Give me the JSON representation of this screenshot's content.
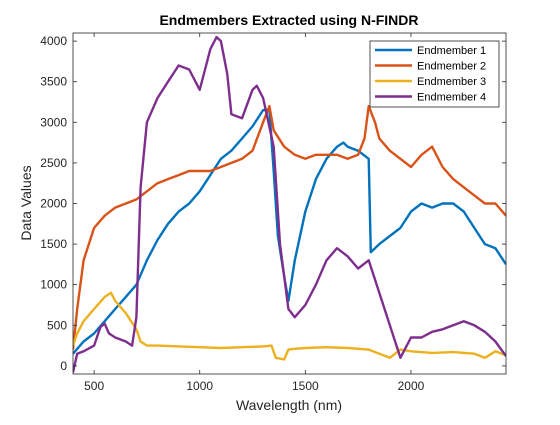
{
  "chart_data": {
    "type": "line",
    "title": "Endmembers Extracted using N-FINDR",
    "xlabel": "Wavelength (nm)",
    "ylabel": "Data Values",
    "xlim": [
      400,
      2450
    ],
    "ylim": [
      -100,
      4100
    ],
    "xticks": [
      500,
      1000,
      1500,
      2000
    ],
    "yticks": [
      0,
      500,
      1000,
      1500,
      2000,
      2500,
      3000,
      3500,
      4000
    ],
    "grid": false,
    "legend_position": "top-right",
    "series": [
      {
        "name": "Endmember 1",
        "color": "#0072BD",
        "x": [
          400,
          450,
          500,
          550,
          600,
          650,
          700,
          750,
          800,
          850,
          900,
          950,
          1000,
          1050,
          1100,
          1150,
          1200,
          1250,
          1300,
          1330,
          1350,
          1370,
          1400,
          1420,
          1450,
          1500,
          1550,
          1600,
          1650,
          1680,
          1700,
          1750,
          1800,
          1810,
          1850,
          1900,
          1950,
          2000,
          2050,
          2100,
          2150,
          2200,
          2250,
          2300,
          2350,
          2400,
          2450
        ],
        "y": [
          150,
          300,
          400,
          550,
          700,
          850,
          1000,
          1300,
          1550,
          1750,
          1900,
          2000,
          2150,
          2350,
          2550,
          2650,
          2800,
          2950,
          3150,
          3150,
          2400,
          1600,
          1100,
          800,
          1300,
          1900,
          2300,
          2550,
          2700,
          2750,
          2700,
          2650,
          2550,
          1400,
          1500,
          1600,
          1700,
          1900,
          2000,
          1950,
          2000,
          2000,
          1900,
          1700,
          1500,
          1450,
          1250
        ]
      },
      {
        "name": "Endmember 2",
        "color": "#D95319",
        "x": [
          400,
          420,
          450,
          500,
          550,
          600,
          650,
          700,
          750,
          800,
          850,
          900,
          950,
          1000,
          1050,
          1100,
          1150,
          1200,
          1250,
          1300,
          1330,
          1350,
          1400,
          1450,
          1500,
          1550,
          1600,
          1650,
          1700,
          1750,
          1780,
          1800,
          1830,
          1850,
          1900,
          1950,
          2000,
          2050,
          2100,
          2150,
          2200,
          2250,
          2300,
          2350,
          2400,
          2450
        ],
        "y": [
          200,
          700,
          1300,
          1700,
          1850,
          1950,
          2000,
          2050,
          2150,
          2250,
          2300,
          2350,
          2400,
          2400,
          2400,
          2450,
          2500,
          2550,
          2650,
          3000,
          3200,
          2900,
          2700,
          2600,
          2550,
          2600,
          2600,
          2600,
          2550,
          2600,
          2800,
          3200,
          3000,
          2800,
          2650,
          2550,
          2450,
          2600,
          2700,
          2450,
          2300,
          2200,
          2100,
          2000,
          2000,
          1850
        ]
      },
      {
        "name": "Endmember 3",
        "color": "#EDB120",
        "x": [
          400,
          420,
          450,
          500,
          550,
          580,
          600,
          650,
          700,
          720,
          750,
          800,
          900,
          1000,
          1100,
          1200,
          1300,
          1340,
          1360,
          1400,
          1420,
          1450,
          1500,
          1600,
          1700,
          1800,
          1900,
          1950,
          2000,
          2100,
          2200,
          2300,
          2350,
          2400,
          2450
        ],
        "y": [
          250,
          400,
          550,
          700,
          850,
          900,
          800,
          650,
          450,
          300,
          250,
          250,
          240,
          230,
          220,
          230,
          240,
          250,
          100,
          80,
          200,
          210,
          220,
          230,
          220,
          200,
          100,
          200,
          180,
          160,
          170,
          150,
          100,
          180,
          130
        ]
      },
      {
        "name": "Endmember 4",
        "color": "#7E2F8E",
        "x": [
          400,
          420,
          450,
          500,
          530,
          550,
          570,
          600,
          650,
          680,
          700,
          720,
          750,
          800,
          850,
          900,
          950,
          1000,
          1030,
          1050,
          1080,
          1100,
          1130,
          1150,
          1200,
          1250,
          1270,
          1300,
          1350,
          1380,
          1420,
          1450,
          1500,
          1550,
          1600,
          1650,
          1700,
          1750,
          1800,
          1850,
          1950,
          2000,
          2050,
          2100,
          2150,
          2200,
          2250,
          2300,
          2350,
          2400,
          2450
        ],
        "y": [
          -80,
          150,
          180,
          250,
          480,
          520,
          400,
          350,
          300,
          250,
          600,
          2200,
          3000,
          3300,
          3500,
          3700,
          3650,
          3400,
          3700,
          3900,
          4050,
          4000,
          3600,
          3100,
          3050,
          3400,
          3450,
          3300,
          2700,
          1500,
          700,
          600,
          750,
          1000,
          1300,
          1450,
          1350,
          1200,
          1300,
          900,
          100,
          350,
          350,
          420,
          450,
          500,
          550,
          500,
          420,
          300,
          120
        ]
      }
    ]
  }
}
